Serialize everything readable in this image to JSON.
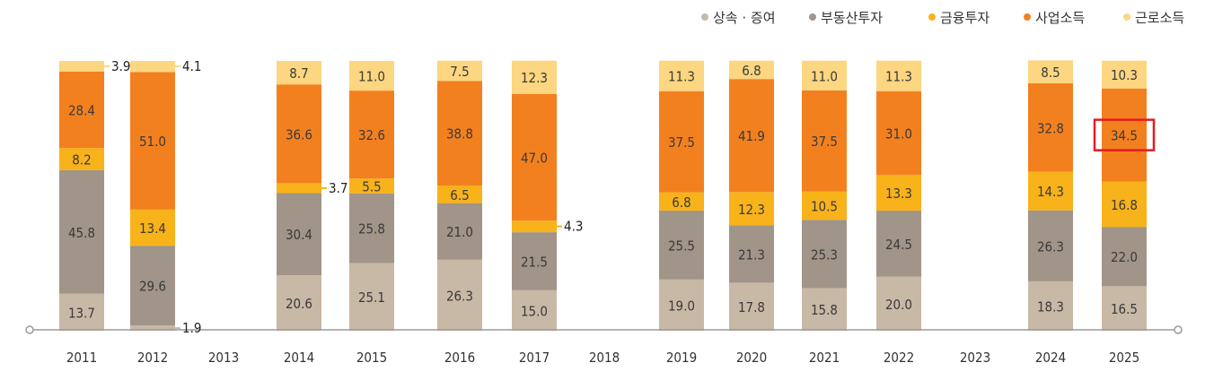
{
  "chart_data": {
    "type": "bar",
    "stacked": true,
    "title": "",
    "xlabel": "",
    "ylabel": "",
    "ylim": [
      0,
      100
    ],
    "grid": false,
    "legend_position": "top-right",
    "x_ticks": [
      "2011",
      "2012",
      "2013",
      "2014",
      "2015",
      "2016",
      "2017",
      "2018",
      "2019",
      "2020",
      "2021",
      "2022",
      "2023",
      "2024",
      "2025"
    ],
    "categories": [
      "2011",
      "2012",
      "2014",
      "2015",
      "2016",
      "2017",
      "2019",
      "2020",
      "2021",
      "2022",
      "2024",
      "2025"
    ],
    "series": [
      {
        "name": "상속 · 증여",
        "color": "#c8b8a6",
        "values": [
          13.7,
          1.9,
          20.6,
          25.1,
          26.3,
          15.0,
          19.0,
          17.8,
          15.8,
          20.0,
          18.3,
          16.5
        ]
      },
      {
        "name": "부동산투자",
        "color": "#a19488",
        "values": [
          45.8,
          29.6,
          30.4,
          25.8,
          21.0,
          21.5,
          25.5,
          21.3,
          25.3,
          24.5,
          26.3,
          22.0
        ]
      },
      {
        "name": "금융투자",
        "color": "#f8b21a",
        "values": [
          8.2,
          13.4,
          3.7,
          5.5,
          6.5,
          4.3,
          6.8,
          12.3,
          10.5,
          13.3,
          14.3,
          16.8
        ]
      },
      {
        "name": "사업소득",
        "color": "#f3801f",
        "values": [
          28.4,
          51.0,
          36.6,
          32.6,
          38.8,
          47.0,
          37.5,
          41.9,
          37.5,
          31.0,
          32.8,
          34.5
        ]
      },
      {
        "name": "근로소득",
        "color": "#fcd680",
        "values": [
          3.9,
          4.1,
          8.7,
          11.0,
          7.5,
          12.3,
          11.3,
          6.8,
          11.0,
          11.3,
          8.5,
          10.3
        ]
      }
    ],
    "highlight": {
      "category": "2025",
      "series": "사업소득",
      "color": "#e51b23"
    }
  }
}
